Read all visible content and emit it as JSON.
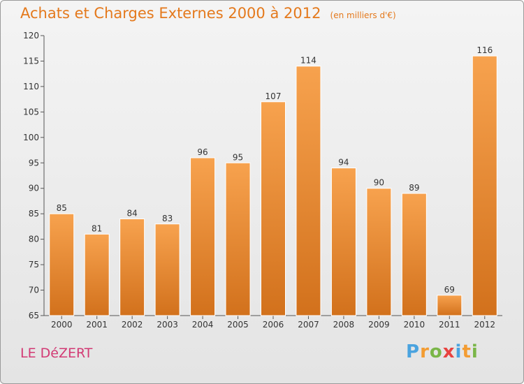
{
  "header": {
    "title": "Achats et Charges Externes 2000 à 2012",
    "subtitle": "(en milliers d'€)"
  },
  "footer": {
    "town": "LE DéZERT"
  },
  "logo": {
    "text": "Proxiti",
    "letters": [
      {
        "char": "P",
        "color": "#4aa3df"
      },
      {
        "char": "r",
        "color": "#f39c32"
      },
      {
        "char": "o",
        "color": "#7ab648"
      },
      {
        "char": "x",
        "color": "#e8423f"
      },
      {
        "char": "i",
        "color": "#4aa3df"
      },
      {
        "char": "t",
        "color": "#f39c32"
      },
      {
        "char": "i",
        "color": "#7ab648"
      }
    ]
  },
  "colors": {
    "bar_top": "#f7a24e",
    "bar_bottom": "#d2711c",
    "title": "#e4791c",
    "town": "#d23a74"
  },
  "chart_data": {
    "type": "bar",
    "categories": [
      "2000",
      "2001",
      "2002",
      "2003",
      "2004",
      "2005",
      "2006",
      "2007",
      "2008",
      "2009",
      "2010",
      "2011",
      "2012"
    ],
    "values": [
      85,
      81,
      84,
      83,
      96,
      95,
      107,
      114,
      94,
      90,
      89,
      69,
      116
    ],
    "ylim": [
      65,
      120
    ],
    "yticks": [
      65,
      70,
      75,
      80,
      85,
      90,
      95,
      100,
      105,
      110,
      115,
      120
    ],
    "grid": false
  }
}
